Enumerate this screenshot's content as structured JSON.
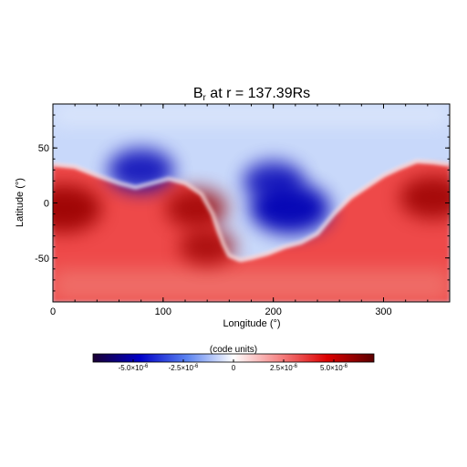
{
  "chart_data": {
    "type": "heatmap",
    "title": "B",
    "title_subscript": "r",
    "title_rest": " at r = 137.39Rs",
    "xlabel": "Longitude (°)",
    "ylabel": "Latitude (°)",
    "xlim": [
      0,
      360
    ],
    "ylim": [
      -90,
      90
    ],
    "xticks": [
      0,
      100,
      200,
      300
    ],
    "yticks": [
      -50,
      0,
      50
    ],
    "x_tick_labels": [
      "0",
      "100",
      "200",
      "300"
    ],
    "y_tick_labels": [
      "-50",
      "0",
      "50"
    ],
    "neutral_line": {
      "description_units": "latitude (deg) of polarity boundary vs longitude (deg)",
      "lon": [
        0,
        20,
        40,
        60,
        75,
        90,
        105,
        120,
        135,
        145,
        150,
        155,
        160,
        170,
        180,
        195,
        210,
        225,
        240,
        255,
        270,
        285,
        300,
        315,
        330,
        345,
        360
      ],
      "lat": [
        35,
        33,
        25,
        18,
        14,
        18,
        22,
        18,
        8,
        -10,
        -25,
        -38,
        -48,
        -52,
        -50,
        -46,
        -40,
        -36,
        -28,
        -10,
        5,
        15,
        25,
        32,
        38,
        37,
        35
      ]
    },
    "features": [
      {
        "sign": "negative",
        "lon": 215,
        "lat": -5,
        "strength": 1.0
      },
      {
        "sign": "negative",
        "lon": 200,
        "lat": 20,
        "strength": 0.65
      },
      {
        "sign": "negative",
        "lon": 80,
        "lat": 30,
        "strength": 0.75
      },
      {
        "sign": "positive",
        "lon": 10,
        "lat": -5,
        "strength": 0.9
      },
      {
        "sign": "positive",
        "lon": 130,
        "lat": -5,
        "strength": 0.65
      },
      {
        "sign": "positive",
        "lon": 345,
        "lat": 5,
        "strength": 0.75
      },
      {
        "sign": "positive",
        "lon": 140,
        "lat": -40,
        "strength": 0.55
      }
    ],
    "colorbar": {
      "label": "(code units)",
      "range": [
        -7e-06,
        7e-06
      ],
      "ticks": [
        -5e-06,
        -2.5e-06,
        0,
        2.5e-06,
        5e-06
      ],
      "tick_mantissa": [
        "-5.0×10",
        "-2.5×10",
        "0",
        "2.5×10",
        "5.0×10"
      ],
      "tick_exponent": [
        "-6",
        "-6",
        "",
        "-6",
        "-6"
      ],
      "colors": [
        "#1a0033",
        "#0000c8",
        "#5a82f0",
        "#ffffff",
        "#f58282",
        "#dc0000",
        "#5a0000"
      ]
    }
  }
}
